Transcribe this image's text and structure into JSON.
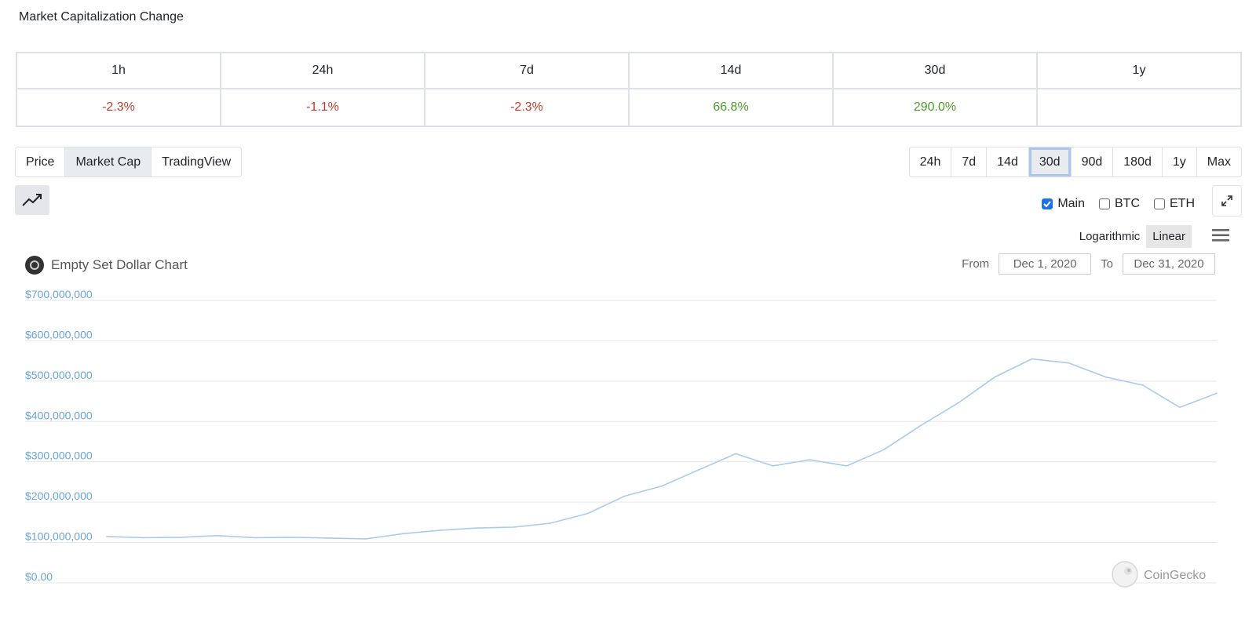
{
  "page": {
    "section_title": "Market Capitalization Change"
  },
  "change_table": {
    "headers": [
      "1h",
      "24h",
      "7d",
      "14d",
      "30d",
      "1y"
    ],
    "values": [
      "-2.3%",
      "-1.1%",
      "-2.3%",
      "66.8%",
      "290.0%",
      ""
    ]
  },
  "view_tabs": {
    "items": [
      "Price",
      "Market Cap",
      "TradingView"
    ],
    "active": "Market Cap"
  },
  "range_tabs": {
    "items": [
      "24h",
      "7d",
      "14d",
      "30d",
      "90d",
      "180d",
      "1y",
      "Max"
    ],
    "active": "30d"
  },
  "icons": {
    "chart_type": "trend-line-icon",
    "expand": "expand-arrows-icon",
    "menu": "hamburger-menu-icon",
    "watermark": "coingecko-gecko-icon"
  },
  "series_toggles": {
    "main": {
      "label": "Main",
      "checked": true
    },
    "btc": {
      "label": "BTC",
      "checked": false
    },
    "eth": {
      "label": "ETH",
      "checked": false
    }
  },
  "scale": {
    "logarithmic": "Logarithmic",
    "linear": "Linear",
    "active": "Linear"
  },
  "chart_header": {
    "title": "Empty Set Dollar Chart",
    "from_label": "From",
    "from_value": "Dec 1, 2020",
    "to_label": "To",
    "to_value": "Dec 31, 2020"
  },
  "credit": "CoinGecko",
  "colors": {
    "line": "#a9cbee",
    "negative": "#c0392b",
    "positive": "#4c9a2a",
    "axis_labels": "#6ba4d8",
    "gridline": "#e6e6e6"
  },
  "chart_data": {
    "type": "line",
    "title": "Empty Set Dollar Chart",
    "ylim": [
      0,
      700000000
    ],
    "yticks": [
      0,
      100000000,
      200000000,
      300000000,
      400000000,
      500000000,
      600000000,
      700000000
    ],
    "ytick_labels": [
      "$0.00",
      "$100,000,000",
      "$200,000,000",
      "$300,000,000",
      "$400,000,000",
      "$500,000,000",
      "$600,000,000",
      "$700,000,000"
    ],
    "xlim": [
      "2020-12-01",
      "2020-12-31"
    ],
    "grid": true,
    "series": [
      {
        "x": [
          "2020-12-01",
          "2020-12-02",
          "2020-12-03",
          "2020-12-04",
          "2020-12-05",
          "2020-12-06",
          "2020-12-07",
          "2020-12-08",
          "2020-12-09",
          "2020-12-10",
          "2020-12-11",
          "2020-12-12",
          "2020-12-13",
          "2020-12-14",
          "2020-12-15",
          "2020-12-16",
          "2020-12-17",
          "2020-12-18",
          "2020-12-19",
          "2020-12-20",
          "2020-12-21",
          "2020-12-22",
          "2020-12-23",
          "2020-12-24",
          "2020-12-25",
          "2020-12-26",
          "2020-12-27",
          "2020-12-28",
          "2020-12-29",
          "2020-12-30",
          "2020-12-31"
        ],
        "values": [
          115000000,
          112000000,
          113000000,
          117000000,
          112000000,
          113000000,
          111000000,
          109000000,
          122000000,
          130000000,
          136000000,
          138000000,
          148000000,
          172000000,
          215000000,
          240000000,
          280000000,
          320000000,
          290000000,
          305000000,
          290000000,
          330000000,
          390000000,
          445000000,
          510000000,
          555000000,
          545000000,
          510000000,
          490000000,
          435000000,
          470000000
        ]
      }
    ]
  }
}
